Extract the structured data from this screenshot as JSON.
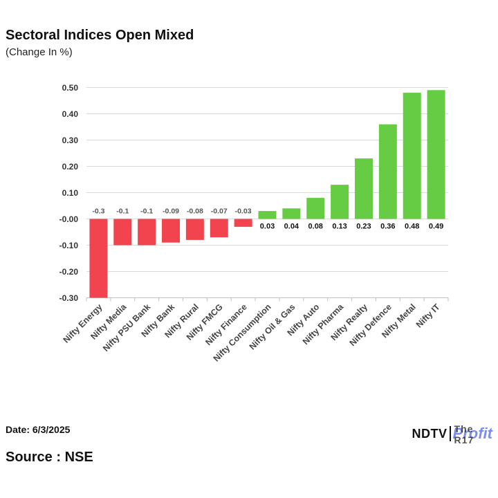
{
  "header": {
    "title": "Sectoral Indices Open Mixed",
    "subtitle": "(Change In %)"
  },
  "footer": {
    "date": "Date: 6/3/2025",
    "source": "Source : NSE",
    "logo_ndtv": "NDTV",
    "logo_profit": "Profit",
    "logo_ghost": "The R17"
  },
  "colors": {
    "negative": "#f1444e",
    "positive": "#66cc44",
    "grid": "#d9d9d9",
    "axis": "#bfbfbf"
  },
  "chart_data": {
    "type": "bar",
    "title": "Sectoral Indices Open Mixed",
    "subtitle": "(Change In %)",
    "categories": [
      "Nifty Energy",
      "Nifty Media",
      "Nifty PSU Bank",
      "Nifty Bank",
      "Nifty Rural",
      "Nifty FMCG",
      "Nifty Finance",
      "Nifty Consumption",
      "Nifty Oil & Gas",
      "Nifty Auto",
      "Nifty Pharma",
      "Nifty Realty",
      "Nifty Defence",
      "Nifty Metal",
      "Nifty IT"
    ],
    "values": [
      -0.3,
      -0.1,
      -0.1,
      -0.09,
      -0.08,
      -0.07,
      -0.03,
      0.03,
      0.04,
      0.08,
      0.13,
      0.23,
      0.36,
      0.48,
      0.49
    ],
    "data_labels": [
      "-0.3",
      "-0.1",
      "-0.1",
      "-0.09",
      "-0.08",
      "-0.07",
      "-0.03",
      "0.03",
      "0.04",
      "0.08",
      "0.13",
      "0.23",
      "0.36",
      "0.48",
      "0.49"
    ],
    "yticks": [
      0.5,
      0.4,
      0.3,
      0.2,
      0.1,
      0,
      -0.1,
      -0.2,
      -0.3
    ],
    "ytick_labels": [
      "0.50",
      "0.40",
      "0.30",
      "0.20",
      "0.10",
      "-0.00",
      "-0.10",
      "-0.20",
      "-0.30"
    ],
    "ylim": [
      -0.3,
      0.5
    ],
    "grid": true,
    "legend": "none",
    "xlabel": "",
    "ylabel": ""
  }
}
